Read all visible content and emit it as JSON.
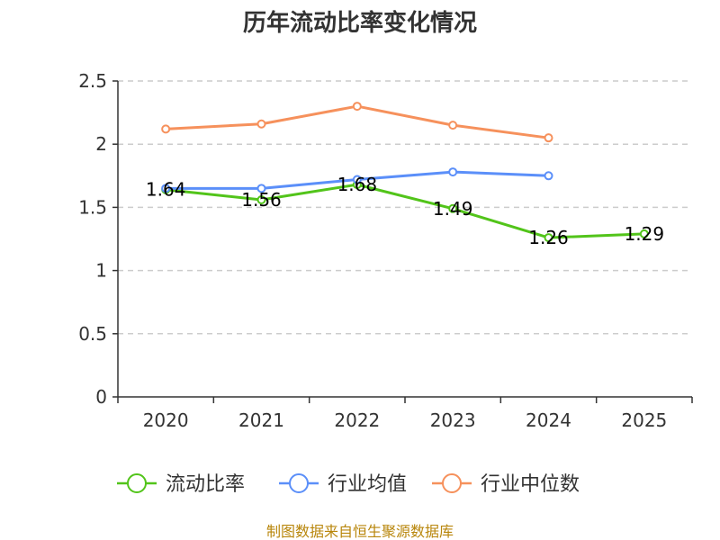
{
  "chart_data": {
    "type": "line",
    "title": "历年流动比率变化情况",
    "categories": [
      "2020",
      "2021",
      "2022",
      "2023",
      "2024",
      "2025"
    ],
    "ylim": [
      0,
      2.5
    ],
    "yticks": [
      "0",
      "0.5",
      "1",
      "1.5",
      "2",
      "2.5"
    ],
    "ytick_values": [
      0,
      0.5,
      1,
      1.5,
      2,
      2.5
    ],
    "grid": true,
    "legend_position": "bottom",
    "series": [
      {
        "name": "流动比率",
        "color": "#52c41a",
        "values": [
          1.64,
          1.56,
          1.68,
          1.49,
          1.26,
          1.29
        ],
        "labels": [
          "1.64",
          "1.56",
          "1.68",
          "1.49",
          "1.26",
          "1.29"
        ],
        "show_labels": true
      },
      {
        "name": "行业均值",
        "color": "#5b8ff9",
        "values": [
          1.65,
          1.65,
          1.72,
          1.78,
          1.75,
          null
        ],
        "show_labels": false
      },
      {
        "name": "行业中位数",
        "color": "#f6915c",
        "values": [
          2.12,
          2.16,
          2.3,
          2.15,
          2.05,
          null
        ],
        "show_labels": false
      }
    ]
  },
  "footer": {
    "source": "制图数据来自恒生聚源数据库"
  }
}
